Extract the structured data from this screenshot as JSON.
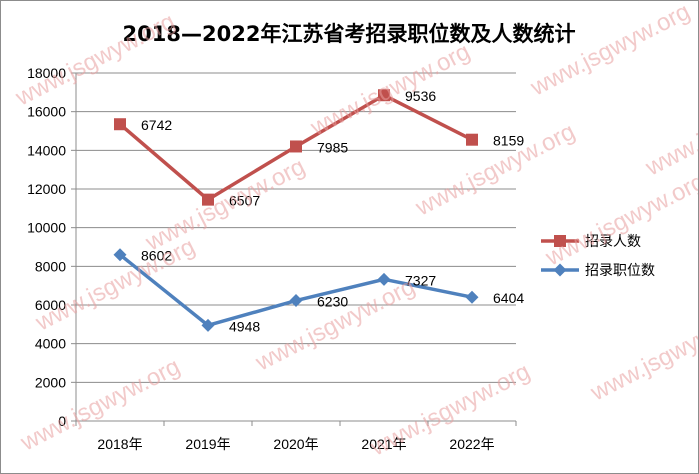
{
  "chart_data": {
    "type": "line",
    "title": "2018—2022年江苏省考招录职位数及人数统计",
    "categories": [
      "2018年",
      "2019年",
      "2020年",
      "2021年",
      "2022年"
    ],
    "ylim": [
      0,
      18000
    ],
    "yticks": [
      0,
      2000,
      4000,
      6000,
      8000,
      10000,
      12000,
      14000,
      16000,
      18000
    ],
    "grid": true,
    "legend_position": "right",
    "series": [
      {
        "name": "招录人数",
        "plot_values": [
          15350,
          11450,
          14200,
          16850,
          14550
        ],
        "labels": [
          "6742",
          "6507",
          "7985",
          "9536",
          "8159"
        ],
        "color": "#c0504d",
        "marker": "square"
      },
      {
        "name": "招录职位数",
        "plot_values": [
          8602,
          4948,
          6230,
          7327,
          6404
        ],
        "labels": [
          "8602",
          "4948",
          "6230",
          "7327",
          "6404"
        ],
        "color": "#4f81bd",
        "marker": "diamond"
      }
    ]
  },
  "watermark": "www.jsgwyw.org"
}
